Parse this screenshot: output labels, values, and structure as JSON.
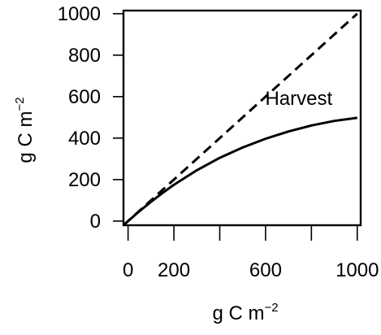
{
  "chart_data": {
    "type": "line",
    "title": "",
    "xlabel": "g C m",
    "xlabel_sup": "−2",
    "ylabel": "g C m",
    "ylabel_sup": "−2",
    "xlim": [
      -20,
      1015
    ],
    "ylim": [
      -20,
      1015
    ],
    "x_ticks": [
      0,
      200,
      400,
      600,
      800,
      1000
    ],
    "x_tick_labels": [
      "0",
      "200",
      "",
      "600",
      "",
      "1000"
    ],
    "y_ticks": [
      0,
      200,
      400,
      600,
      800,
      1000
    ],
    "y_tick_labels": [
      "0",
      "200",
      "400",
      "600",
      "800",
      "1000"
    ],
    "grid": false,
    "legend": "none",
    "series": [
      {
        "style": "dashed",
        "color": "#000000",
        "x": [
          -20,
          1000
        ],
        "y": [
          -20,
          1000
        ]
      },
      {
        "style": "solid",
        "color": "#000000",
        "x": [
          -20,
          0,
          50,
          100,
          150,
          200,
          300,
          400,
          500,
          600,
          700,
          800,
          900,
          1000
        ],
        "y": [
          -20,
          0,
          48,
          93,
          135,
          175,
          245,
          305,
          355,
          397,
          432,
          461,
          483,
          498
        ]
      }
    ],
    "annotations": [
      {
        "text": "Harvest",
        "x": 745,
        "y": 560
      }
    ]
  }
}
